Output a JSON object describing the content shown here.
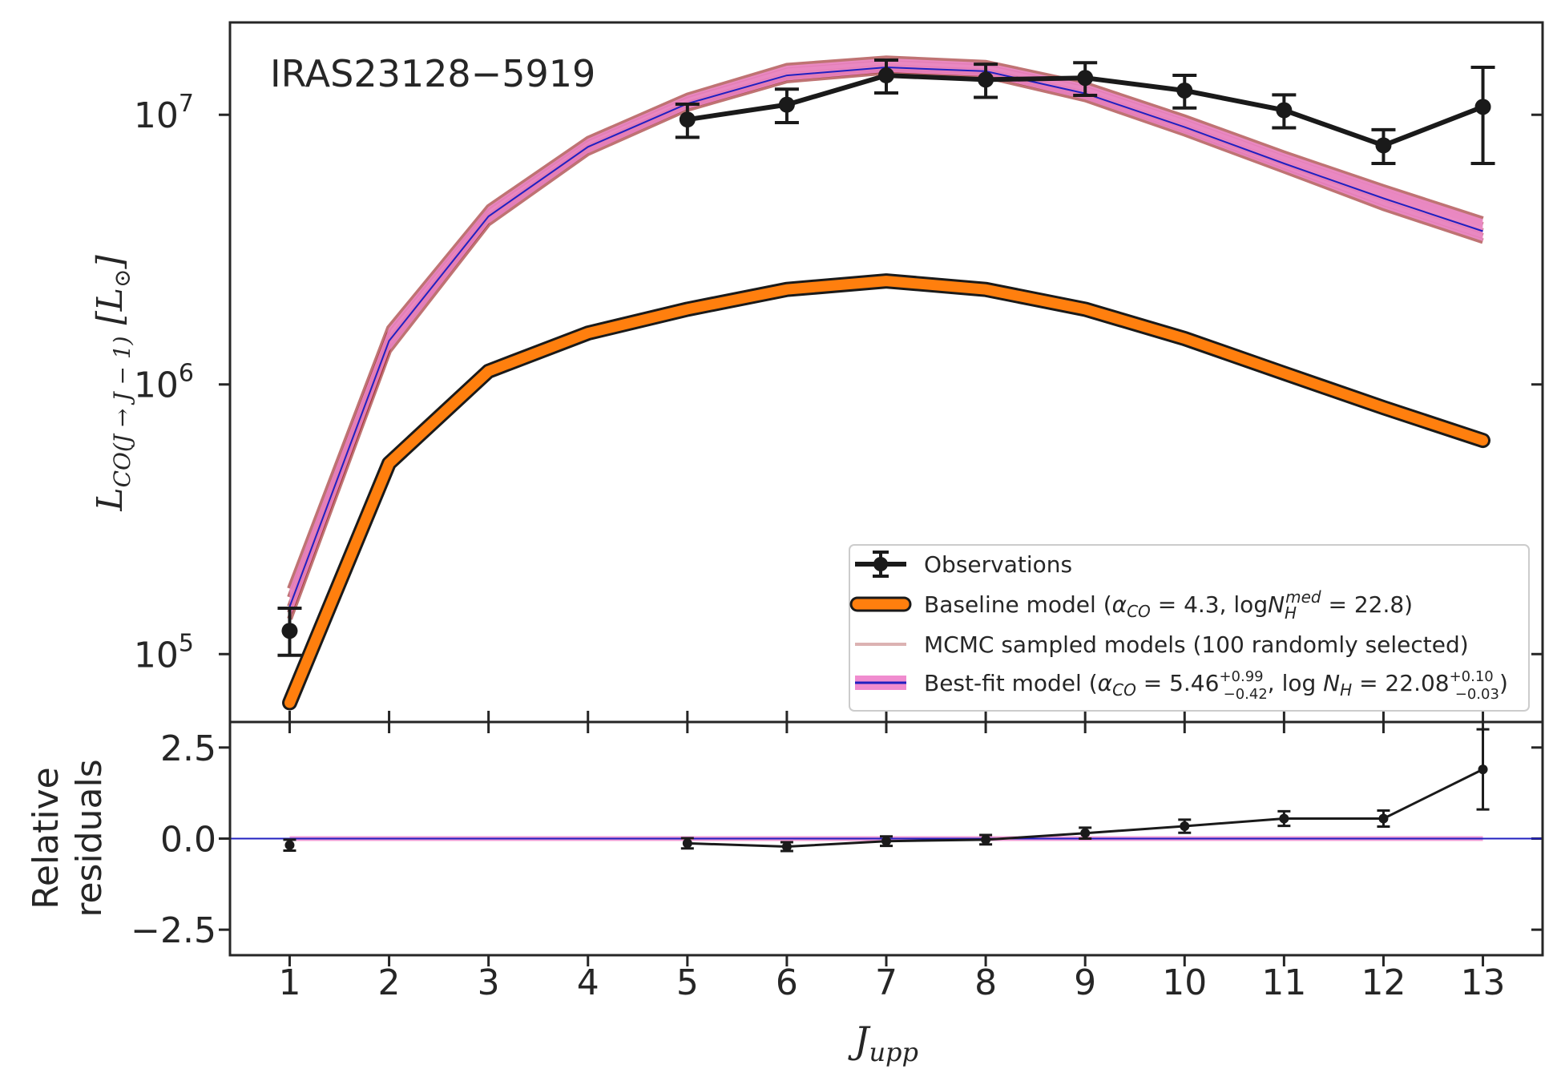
{
  "chart_data": {
    "type": "line",
    "title": "IRAS23128−5919",
    "xlabel": "J",
    "xlabel_sub": "upp",
    "x": [
      1,
      2,
      3,
      4,
      5,
      6,
      7,
      8,
      9,
      10,
      11,
      12,
      13
    ],
    "xlim": [
      0.4,
      13.6
    ],
    "top_panel": {
      "yscale": "log",
      "ylim": [
        56000,
        22000000
      ],
      "ylabel_main": "L",
      "ylabel_sub": "CO(J → J − 1)",
      "ylabel_unit": "[L",
      "ylabel_unit_sym": "⊙",
      "ylabel_unit_end": "]",
      "yticks": [
        {
          "value": 100000,
          "base": "10",
          "exp": "5"
        },
        {
          "value": 1000000,
          "base": "10",
          "exp": "6"
        },
        {
          "value": 10000000,
          "base": "10",
          "exp": "7"
        }
      ],
      "observations": {
        "x": [
          1,
          5,
          6,
          7,
          8,
          9,
          10,
          11,
          12,
          13
        ],
        "y": [
          122000,
          9600000,
          10900000,
          14000000,
          13500000,
          13700000,
          12300000,
          10400000,
          7700000,
          10700000
        ],
        "yerr_low": [
          23000,
          1350000,
          1550000,
          1950000,
          1900000,
          1900000,
          1700000,
          1450000,
          1100000,
          4100000
        ],
        "yerr_high": [
          26000,
          1350000,
          1550000,
          1950000,
          1900000,
          1900000,
          1700000,
          1450000,
          1100000,
          4300000
        ]
      },
      "baseline_model": {
        "x": [
          1,
          2,
          3,
          4,
          5,
          6,
          7,
          8,
          9,
          10,
          11,
          12,
          13
        ],
        "y": [
          66000,
          510000,
          1120000,
          1550000,
          1900000,
          2250000,
          2420000,
          2250000,
          1900000,
          1480000,
          1100000,
          820000,
          620000
        ]
      },
      "best_fit_model": {
        "x": [
          1,
          2,
          3,
          4,
          5,
          6,
          7,
          8,
          9,
          10,
          11,
          12,
          13
        ],
        "y": [
          150000,
          1450000,
          4200000,
          7600000,
          11000000,
          14000000,
          15000000,
          14500000,
          12000000,
          9000000,
          6600000,
          4900000,
          3700000
        ],
        "band_low": [
          135000,
          1330000,
          3950000,
          7200000,
          10500000,
          13400000,
          14400000,
          13900000,
          11400000,
          8500000,
          6200000,
          4500000,
          3400000
        ],
        "band_high": [
          175000,
          1620000,
          4550000,
          8150000,
          11800000,
          15200000,
          16200000,
          15600000,
          13000000,
          9800000,
          7200000,
          5400000,
          4100000
        ]
      },
      "mcmc_spread": [
        0.92,
        0.96,
        1.0,
        1.04,
        1.08
      ]
    },
    "bottom_panel": {
      "ylabel_line1": "Relative",
      "ylabel_line2": "residuals",
      "ylim": [
        -3.2,
        3.2
      ],
      "yticks": [
        {
          "value": 2.5,
          "label": "2.5"
        },
        {
          "value": 0.0,
          "label": "0.0"
        },
        {
          "value": -2.5,
          "label": "−2.5"
        }
      ],
      "residuals": {
        "x": [
          1,
          5,
          6,
          7,
          8,
          9,
          10,
          11,
          12,
          13
        ],
        "y": [
          -0.18,
          -0.13,
          -0.22,
          -0.07,
          -0.03,
          0.15,
          0.34,
          0.55,
          0.55,
          1.9
        ],
        "yerr": [
          0.15,
          0.14,
          0.12,
          0.13,
          0.13,
          0.15,
          0.18,
          0.2,
          0.22,
          1.1
        ]
      }
    },
    "legend": {
      "placement": "lower-right",
      "entries": [
        {
          "key": "observations",
          "text": "Observations"
        },
        {
          "key": "baseline",
          "text_before": "Baseline model (",
          "alpha": "α",
          "alpha_sub": "CO",
          "mid": " = 4.3, log",
          "nh": "N",
          "nh_sub": "H",
          "nh_sup": "med",
          "after": " = 22.8)"
        },
        {
          "key": "mcmc",
          "text": "MCMC sampled models (100 randomly selected)"
        },
        {
          "key": "bestfit",
          "text_before": "Best-fit model (",
          "alpha": "α",
          "alpha_sub": "CO",
          "alpha_val": " = 5.46",
          "alpha_up": "+0.99",
          "alpha_low": "−0.42",
          "mid": ", log ",
          "nh": "N",
          "nh_sub": "H",
          "nh_val": " = 22.08",
          "nh_up": "+0.10",
          "nh_low": "−0.03",
          "after": ")"
        }
      ]
    },
    "colors": {
      "observations": "#1a1a1a",
      "baseline_fill": "#ff7f0e",
      "baseline_edge": "#1a1a1a",
      "mcmc": "#8b0000",
      "band": "#f08ccf",
      "best_fit_line": "#2020c0",
      "axes": "#262626"
    }
  }
}
